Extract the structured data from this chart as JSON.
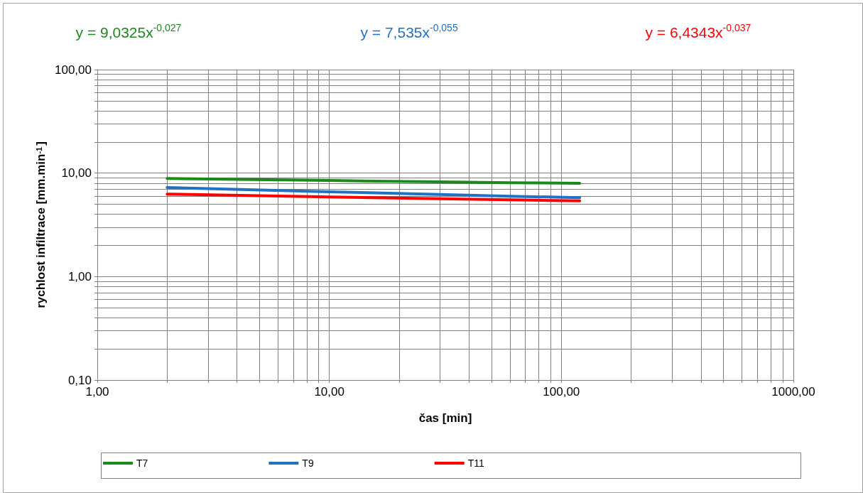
{
  "chart_data": {
    "type": "line",
    "xlabel": "čas [min]",
    "ylabel": "rychlost infiltrace [mm.min$^{-1}$]",
    "annotations": [
      "y = 9,0325x$^{-0,027}$",
      "y = 7,535x$^{-0,055}$",
      "y = 6,4343x$^{-0,037}$"
    ],
    "x": [
      2,
      10,
      30,
      60,
      120
    ],
    "series": [
      {
        "name": "T7",
        "color": "#1a8a1a",
        "values": [
          8.87,
          8.48,
          8.23,
          8.08,
          7.96
        ]
      },
      {
        "name": "T9",
        "color": "#1f72c4",
        "values": [
          7.25,
          6.6,
          6.21,
          5.98,
          5.79
        ]
      },
      {
        "name": "T11",
        "color": "#ff0000",
        "values": [
          6.27,
          5.89,
          5.65,
          5.51,
          5.39
        ]
      }
    ],
    "log": "xy",
    "xlim": [
      1,
      1000
    ],
    "ylim": [
      0.1,
      100
    ],
    "xticks": [
      {
        "value": 1,
        "label": "1,00"
      },
      {
        "value": 10,
        "label": "10,00"
      },
      {
        "value": 100,
        "label": "100,00"
      },
      {
        "value": 1000,
        "label": "1000,00"
      }
    ],
    "yticks": [
      {
        "value": 0.1,
        "label": "0,10"
      },
      {
        "value": 1,
        "label": "1,00"
      },
      {
        "value": 10,
        "label": "10,00"
      },
      {
        "value": 100,
        "label": "100,00"
      }
    ],
    "grid": true,
    "legend": "bottom",
    "marker": "none",
    "line_style": "solid"
  }
}
